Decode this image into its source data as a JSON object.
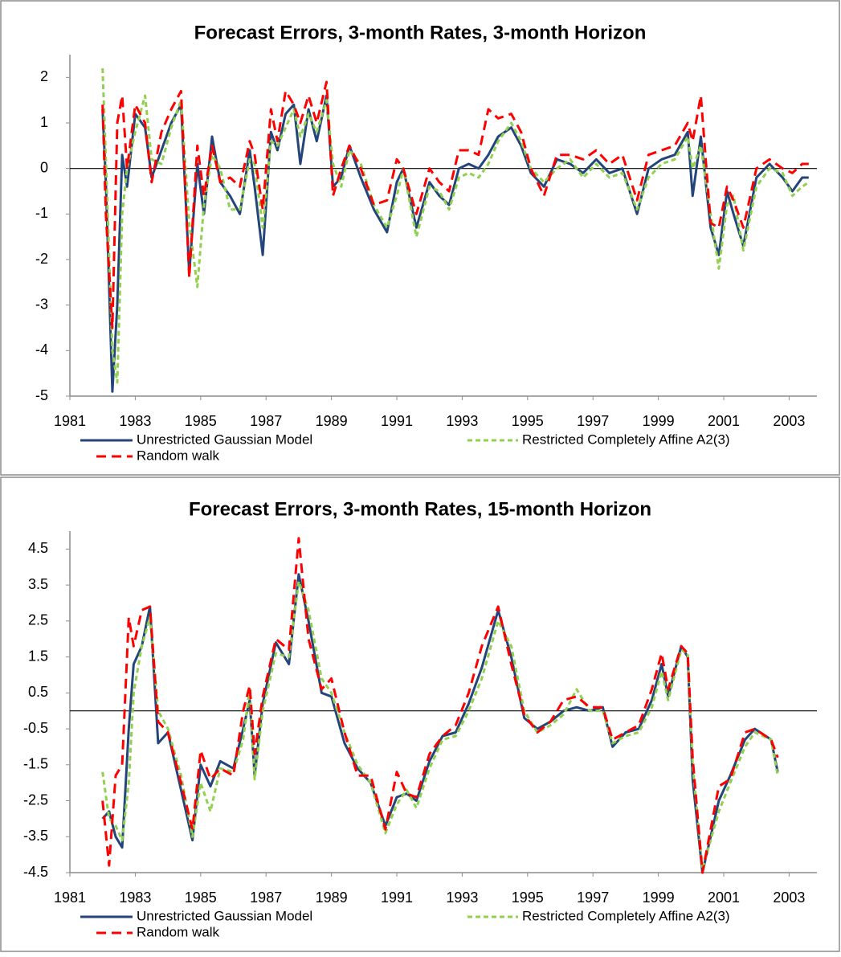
{
  "chart_data": [
    {
      "type": "line",
      "title": "Forecast Errors, 3-month Rates, 3-month Horizon",
      "x": [
        1982.0,
        1982.1,
        1982.3,
        1982.45,
        1982.6,
        1982.75,
        1983.0,
        1983.3,
        1983.5,
        1983.8,
        1984.1,
        1984.4,
        1984.65,
        1984.9,
        1985.1,
        1985.35,
        1985.6,
        1985.9,
        1986.2,
        1986.5,
        1986.65,
        1986.9,
        1987.15,
        1987.35,
        1987.6,
        1987.85,
        1988.05,
        1988.3,
        1988.55,
        1988.85,
        1989.05,
        1989.3,
        1989.55,
        1989.9,
        1990.3,
        1990.7,
        1991.0,
        1991.2,
        1991.6,
        1992.0,
        1992.3,
        1992.6,
        1992.9,
        1993.2,
        1993.5,
        1993.8,
        1994.1,
        1994.5,
        1994.8,
        1995.1,
        1995.5,
        1995.9,
        1996.3,
        1996.7,
        1997.1,
        1997.5,
        1997.9,
        1998.35,
        1998.7,
        1999.1,
        1999.5,
        1999.9,
        2000.05,
        2000.3,
        2000.6,
        2000.85,
        2001.1,
        2001.3,
        2001.6,
        2002.0,
        2002.4,
        2002.8,
        2003.1,
        2003.4,
        2003.6
      ],
      "series": [
        {
          "name": "Unrestricted Gaussian Model",
          "color": "#24457a",
          "style": "solid",
          "values": [
            1.3,
            -0.3,
            -4.9,
            -3.0,
            0.3,
            -0.4,
            1.2,
            0.9,
            -0.2,
            0.4,
            1.0,
            1.4,
            -2.3,
            0.1,
            -1.0,
            0.7,
            -0.3,
            -0.6,
            -1.0,
            0.4,
            -0.4,
            -1.9,
            0.8,
            0.4,
            1.2,
            1.4,
            0.1,
            1.3,
            0.6,
            1.6,
            -0.4,
            -0.2,
            0.5,
            -0.2,
            -0.9,
            -1.4,
            -0.3,
            0.0,
            -1.3,
            -0.3,
            -0.6,
            -0.8,
            0.0,
            0.1,
            0.0,
            0.3,
            0.7,
            0.9,
            0.5,
            -0.1,
            -0.4,
            0.2,
            0.1,
            -0.1,
            0.2,
            -0.1,
            0.0,
            -1.0,
            0.0,
            0.2,
            0.3,
            0.8,
            -0.6,
            0.7,
            -1.3,
            -1.9,
            -0.5,
            -1.0,
            -1.7,
            -0.2,
            0.1,
            -0.2,
            -0.5,
            -0.2,
            -0.2
          ]
        },
        {
          "name": "Restricted Completely Affine A2(3)",
          "color": "#92d050",
          "style": "short-dash",
          "values": [
            2.2,
            0.2,
            -4.0,
            -4.7,
            -1.0,
            0.0,
            0.8,
            1.6,
            0.2,
            0.1,
            0.9,
            1.5,
            -1.2,
            -2.6,
            -0.8,
            0.3,
            0.0,
            -0.9,
            -0.9,
            0.2,
            0.1,
            -1.3,
            0.6,
            0.5,
            0.9,
            1.3,
            0.7,
            1.2,
            0.8,
            1.5,
            0.1,
            -0.4,
            0.4,
            0.1,
            -0.8,
            -1.3,
            -0.6,
            0.0,
            -1.5,
            -0.4,
            -0.5,
            -0.9,
            -0.2,
            -0.1,
            -0.2,
            0.1,
            0.6,
            1.0,
            0.6,
            0.0,
            -0.3,
            0.0,
            0.2,
            -0.2,
            0.1,
            -0.2,
            -0.1,
            -0.9,
            -0.2,
            0.1,
            0.2,
            0.7,
            0.0,
            0.5,
            -1.0,
            -2.2,
            -0.8,
            -0.6,
            -1.8,
            -0.4,
            0.0,
            -0.1,
            -0.6,
            -0.4,
            -0.3
          ]
        },
        {
          "name": "Random walk",
          "color": "#ff0000",
          "style": "long-dash",
          "values": [
            1.4,
            -1.0,
            -3.5,
            1.0,
            1.6,
            0.0,
            1.4,
            1.0,
            -0.3,
            0.8,
            1.3,
            1.7,
            -2.4,
            0.5,
            -0.6,
            0.5,
            -0.3,
            -0.2,
            -0.4,
            0.6,
            0.3,
            -0.9,
            1.3,
            0.6,
            1.7,
            1.4,
            1.0,
            1.6,
            1.0,
            1.9,
            -0.6,
            0.0,
            0.5,
            0.0,
            -0.8,
            -0.7,
            0.2,
            0.0,
            -1.0,
            0.0,
            -0.3,
            -0.5,
            0.4,
            0.4,
            0.3,
            1.3,
            1.1,
            1.2,
            0.8,
            0.0,
            -0.6,
            0.3,
            0.3,
            0.2,
            0.4,
            0.1,
            0.3,
            -0.7,
            0.3,
            0.4,
            0.5,
            1.0,
            0.6,
            1.6,
            -1.2,
            -1.3,
            -0.4,
            -0.7,
            -1.3,
            0.0,
            0.2,
            0.0,
            -0.1,
            0.1,
            0.1
          ]
        }
      ],
      "xlim": [
        1981,
        2003.85
      ],
      "xticks": [
        1981,
        1983,
        1985,
        1987,
        1989,
        1991,
        1993,
        1995,
        1997,
        1999,
        2001,
        2003
      ],
      "ylim": [
        -5,
        2.5
      ],
      "yticks": [
        -5,
        -4,
        -3,
        -2,
        -1,
        0,
        1,
        2
      ],
      "grid": false,
      "legend": "bottom"
    },
    {
      "type": "line",
      "title": "Forecast Errors, 3-month Rates, 15-month Horizon",
      "x": [
        1982.0,
        1982.2,
        1982.4,
        1982.6,
        1982.8,
        1982.95,
        1983.2,
        1983.45,
        1983.7,
        1984.0,
        1984.4,
        1984.75,
        1985.0,
        1985.3,
        1985.6,
        1986.0,
        1986.3,
        1986.5,
        1986.65,
        1986.9,
        1987.3,
        1987.7,
        1988.0,
        1988.3,
        1988.7,
        1989.0,
        1989.4,
        1989.8,
        1990.2,
        1990.65,
        1991.0,
        1991.3,
        1991.6,
        1992.0,
        1992.4,
        1992.8,
        1993.2,
        1993.6,
        1994.1,
        1994.5,
        1994.9,
        1995.3,
        1995.7,
        1996.1,
        1996.5,
        1996.9,
        1997.3,
        1997.6,
        1998.0,
        1998.4,
        1998.8,
        1999.1,
        1999.3,
        1999.7,
        1999.9,
        2000.05,
        2000.35,
        2000.85,
        2001.2,
        2001.65,
        2001.95,
        2002.45,
        2002.65
      ],
      "series": [
        {
          "name": "Unrestricted Gaussian Model",
          "color": "#24457a",
          "style": "solid",
          "values": [
            -3.0,
            -2.8,
            -3.5,
            -3.8,
            -0.5,
            1.3,
            1.8,
            2.9,
            -0.9,
            -0.6,
            -2.2,
            -3.6,
            -1.5,
            -2.1,
            -1.4,
            -1.6,
            -0.5,
            0.3,
            -1.8,
            0.2,
            1.9,
            1.3,
            3.8,
            2.5,
            0.5,
            0.4,
            -0.9,
            -1.6,
            -2.0,
            -3.2,
            -2.4,
            -2.3,
            -2.5,
            -1.4,
            -0.7,
            -0.6,
            0.2,
            1.2,
            2.8,
            1.5,
            -0.2,
            -0.5,
            -0.3,
            0.0,
            0.1,
            0.0,
            0.1,
            -1.0,
            -0.6,
            -0.5,
            0.3,
            1.3,
            0.4,
            1.8,
            1.5,
            -1.9,
            -4.5,
            -2.5,
            -1.8,
            -0.8,
            -0.5,
            -0.8,
            -1.7
          ]
        },
        {
          "name": "Restricted Completely Affine A2(3)",
          "color": "#92d050",
          "style": "short-dash",
          "values": [
            -1.7,
            -3.0,
            -3.2,
            -3.6,
            -2.0,
            0.5,
            1.8,
            2.6,
            0.0,
            -0.5,
            -1.8,
            -3.5,
            -2.0,
            -2.8,
            -1.6,
            -1.7,
            -0.8,
            0.6,
            -1.9,
            0.0,
            1.6,
            1.5,
            3.6,
            2.8,
            0.9,
            0.5,
            -0.6,
            -1.5,
            -2.0,
            -3.4,
            -2.6,
            -2.2,
            -2.7,
            -1.6,
            -0.8,
            -0.7,
            0.0,
            0.9,
            2.5,
            1.8,
            0.0,
            -0.6,
            -0.4,
            -0.1,
            0.6,
            0.0,
            0.0,
            -0.9,
            -0.7,
            -0.6,
            0.1,
            1.1,
            0.3,
            1.7,
            1.6,
            -1.5,
            -4.4,
            -2.8,
            -2.0,
            -1.0,
            -0.6,
            -0.8,
            -1.8
          ]
        },
        {
          "name": "Random walk",
          "color": "#ff0000",
          "style": "long-dash",
          "values": [
            -2.5,
            -4.3,
            -1.8,
            -1.5,
            2.6,
            1.8,
            2.8,
            2.9,
            -0.3,
            -0.6,
            -2.0,
            -3.3,
            -1.1,
            -1.9,
            -1.6,
            -1.8,
            0.0,
            0.7,
            -1.2,
            0.4,
            2.0,
            1.7,
            4.8,
            2.0,
            0.6,
            0.9,
            -0.6,
            -1.8,
            -1.8,
            -3.3,
            -1.7,
            -2.3,
            -2.4,
            -1.2,
            -0.7,
            -0.4,
            0.5,
            1.8,
            2.9,
            1.3,
            -0.1,
            -0.6,
            -0.3,
            0.3,
            0.4,
            0.1,
            0.1,
            -0.8,
            -0.6,
            -0.4,
            0.6,
            1.6,
            0.6,
            1.8,
            1.6,
            -1.3,
            -4.5,
            -2.1,
            -1.9,
            -0.6,
            -0.5,
            -0.8,
            -1.3
          ]
        }
      ],
      "xlim": [
        1981,
        2003.85
      ],
      "xticks": [
        1981,
        1983,
        1985,
        1987,
        1989,
        1991,
        1993,
        1995,
        1997,
        1999,
        2001,
        2003
      ],
      "ylim": [
        -4.5,
        5
      ],
      "yticks": [
        -4.5,
        -3.5,
        -2.5,
        -1.5,
        -0.5,
        0.5,
        1.5,
        2.5,
        3.5,
        4.5
      ],
      "grid": false,
      "legend": "bottom"
    }
  ]
}
